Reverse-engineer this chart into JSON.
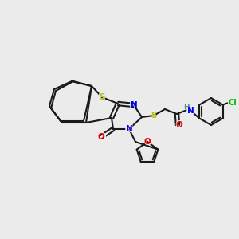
{
  "background_color": "#ebebeb",
  "bond_color": "#1a1a1a",
  "bond_width": 1.5,
  "atom_colors": {
    "N": "#0000ee",
    "O": "#ee0000",
    "S": "#bbbb00",
    "Cl": "#00bb00",
    "H": "#4a9090",
    "C": "#1a1a1a"
  },
  "font_size": 7.5
}
